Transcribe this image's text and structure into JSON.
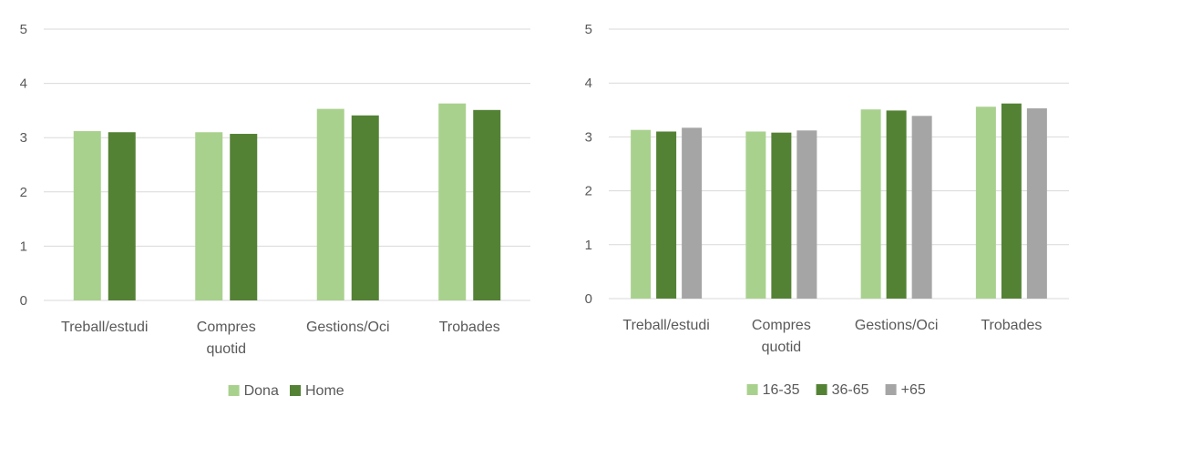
{
  "chart_data": [
    {
      "type": "bar",
      "categories": [
        [
          "Treball/estudi"
        ],
        [
          "Compres",
          "quotid"
        ],
        [
          "Gestions/Oci"
        ],
        [
          "Trobades"
        ]
      ],
      "series": [
        {
          "name": "Dona",
          "values": [
            3.12,
            3.1,
            3.53,
            3.63
          ],
          "color": "#a9d18e"
        },
        {
          "name": "Home",
          "values": [
            3.1,
            3.07,
            3.41,
            3.51
          ],
          "color": "#548235"
        }
      ],
      "yticks": [
        "0",
        "1",
        "2",
        "3",
        "4",
        "5"
      ],
      "ylim": [
        0,
        5
      ],
      "grid": true,
      "legend": "bottom"
    },
    {
      "type": "bar",
      "categories": [
        [
          "Treball/estudi"
        ],
        [
          "Compres",
          "quotid"
        ],
        [
          "Gestions/Oci"
        ],
        [
          "Trobades"
        ]
      ],
      "series": [
        {
          "name": "16-35",
          "values": [
            3.13,
            3.1,
            3.51,
            3.56
          ],
          "color": "#a9d18e"
        },
        {
          "name": "36-65",
          "values": [
            3.1,
            3.08,
            3.49,
            3.62
          ],
          "color": "#548235"
        },
        {
          "name": "+65",
          "values": [
            3.17,
            3.12,
            3.39,
            3.53
          ],
          "color": "#a5a5a5"
        }
      ],
      "yticks": [
        "0",
        "1",
        "2",
        "3",
        "4",
        "5"
      ],
      "ylim": [
        0,
        5
      ],
      "grid": true,
      "legend": "bottom"
    }
  ]
}
